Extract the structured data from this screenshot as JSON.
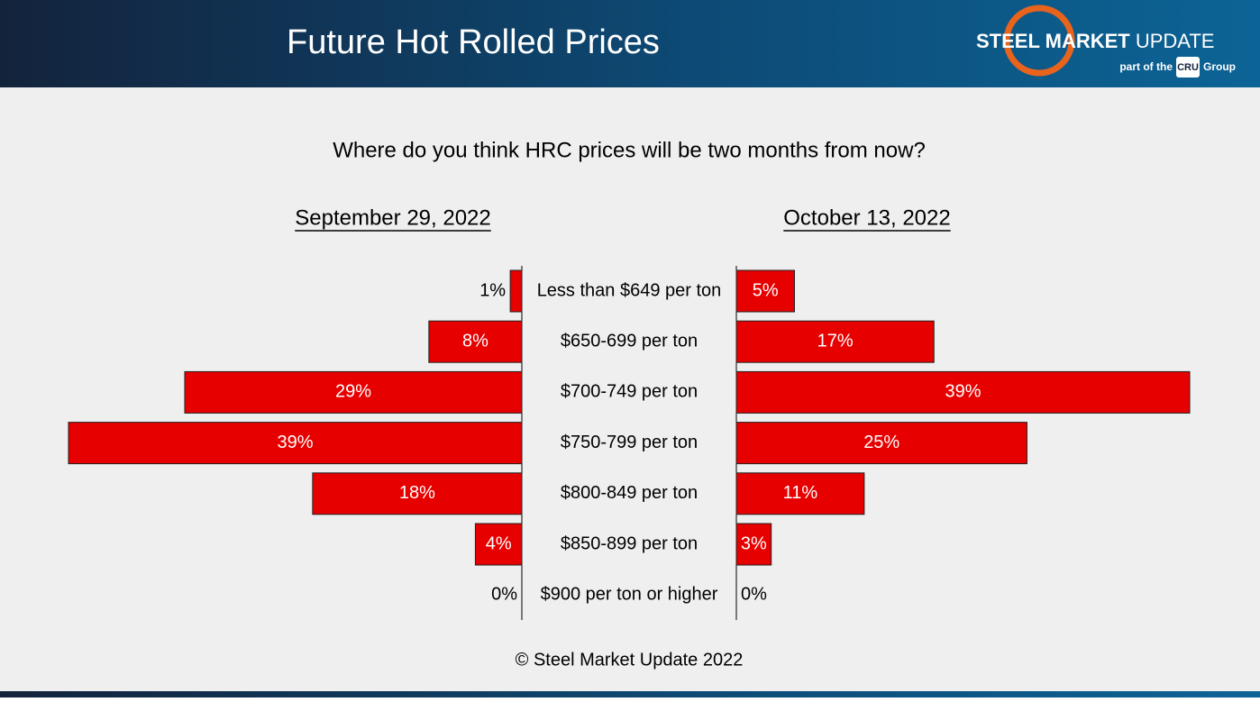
{
  "header": {
    "title": "Future Hot Rolled Prices",
    "logo": {
      "brand_bold": "STEEL MARKET",
      "brand": "UPDATE",
      "tagline": "part of the",
      "group_mark": "CRU",
      "group": "Group"
    }
  },
  "chart_data": {
    "type": "bar",
    "title": "Where do you think HRC prices will be two months from now?",
    "categories": [
      "Less than $649 per ton",
      "$650-699 per ton",
      "$700-749 per ton",
      "$750-799 per ton",
      "$800-849 per ton",
      "$850-899 per ton",
      "$900 per ton or higher"
    ],
    "series": [
      {
        "name": "September 29, 2022",
        "color": "#e60000",
        "values": [
          1,
          8,
          29,
          39,
          18,
          4,
          0
        ],
        "value_labels": [
          "1%",
          "8%",
          "29%",
          "39%",
          "18%",
          "4%",
          "0%"
        ]
      },
      {
        "name": "October 13, 2022",
        "color": "#e60000",
        "values": [
          5,
          17,
          39,
          25,
          11,
          3,
          0
        ],
        "value_labels": [
          "5%",
          "17%",
          "39%",
          "25%",
          "11%",
          "3%",
          "0%"
        ]
      }
    ]
  },
  "footer": "© Steel Market Update 2022"
}
